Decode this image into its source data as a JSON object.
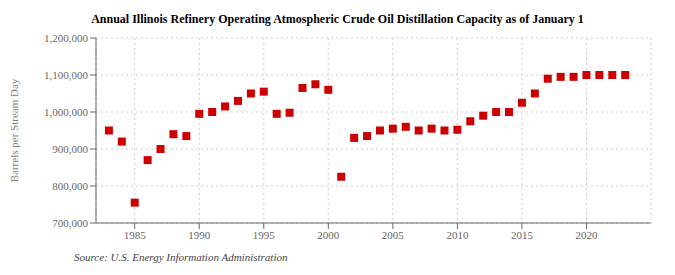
{
  "chart_data": {
    "type": "scatter",
    "title": "Annual Illinois Refinery Operating Atmospheric Crude Oil Distillation Capacity as of January 1",
    "y_label": "Barrels per Stream Day",
    "annotation": "Source: U.S. Energy Information Administration",
    "x": [
      1983,
      1984,
      1985,
      1986,
      1987,
      1988,
      1989,
      1990,
      1991,
      1992,
      1993,
      1994,
      1995,
      1996,
      1997,
      1998,
      1999,
      2000,
      2001,
      2002,
      2003,
      2004,
      2005,
      2006,
      2007,
      2008,
      2009,
      2010,
      2011,
      2012,
      2013,
      2014,
      2015,
      2016,
      2017,
      2018,
      2019,
      2020,
      2021,
      2022,
      2023
    ],
    "values": [
      950000,
      920000,
      755000,
      870000,
      900000,
      940000,
      935000,
      995000,
      1000000,
      1015000,
      1030000,
      1050000,
      1055000,
      995000,
      998000,
      1065000,
      1075000,
      1060000,
      825000,
      930000,
      935000,
      950000,
      955000,
      960000,
      950000,
      955000,
      950000,
      952000,
      975000,
      990000,
      1000000,
      1000000,
      1025000,
      1050000,
      1090000,
      1095000,
      1095000,
      1100000,
      1100000,
      1100000,
      1100000
    ],
    "color": "#cc0000",
    "marker": "square",
    "xlim": [
      1982,
      2025
    ],
    "xticks": [
      1985,
      1990,
      1995,
      2000,
      2005,
      2010,
      2015,
      2020
    ],
    "ylim": [
      700000,
      1200000
    ],
    "yticks": [
      {
        "value": 700000,
        "label": "700,000"
      },
      {
        "value": 800000,
        "label": "800,000"
      },
      {
        "value": 900000,
        "label": "900,000"
      },
      {
        "value": 1000000,
        "label": "1,000,000"
      },
      {
        "value": 1100000,
        "label": "1,100,000"
      },
      {
        "value": 1200000,
        "label": "1,200,000"
      }
    ],
    "grid": true
  }
}
